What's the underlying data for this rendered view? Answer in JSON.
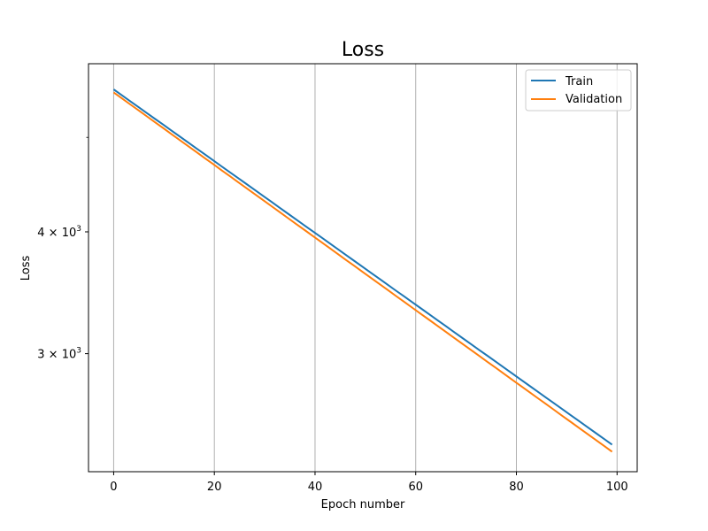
{
  "chart_data": {
    "type": "line",
    "title": "Loss",
    "xlabel": "Epoch number",
    "ylabel": "Loss",
    "y_scale": "log",
    "xlim": [
      -5,
      104
    ],
    "ylim": [
      2270,
      5950
    ],
    "x_ticks": [
      0,
      20,
      40,
      60,
      80,
      100
    ],
    "x_tick_labels": [
      "0",
      "20",
      "40",
      "60",
      "80",
      "100"
    ],
    "y_ticks": [
      {
        "value": 3000,
        "base": "3",
        "exp": "3"
      },
      {
        "value": 4000,
        "base": "4",
        "exp": "3"
      }
    ],
    "y_minor_ticks": [
      5000
    ],
    "grid": "x",
    "legend": "top-right",
    "series": [
      {
        "name": "Train",
        "color": "#1f77b4",
        "start": [
          0,
          5600
        ],
        "end": [
          99,
          2420
        ]
      },
      {
        "name": "Validation",
        "color": "#ff7f0e",
        "start": [
          0,
          5560
        ],
        "end": [
          99,
          2380
        ]
      }
    ]
  }
}
